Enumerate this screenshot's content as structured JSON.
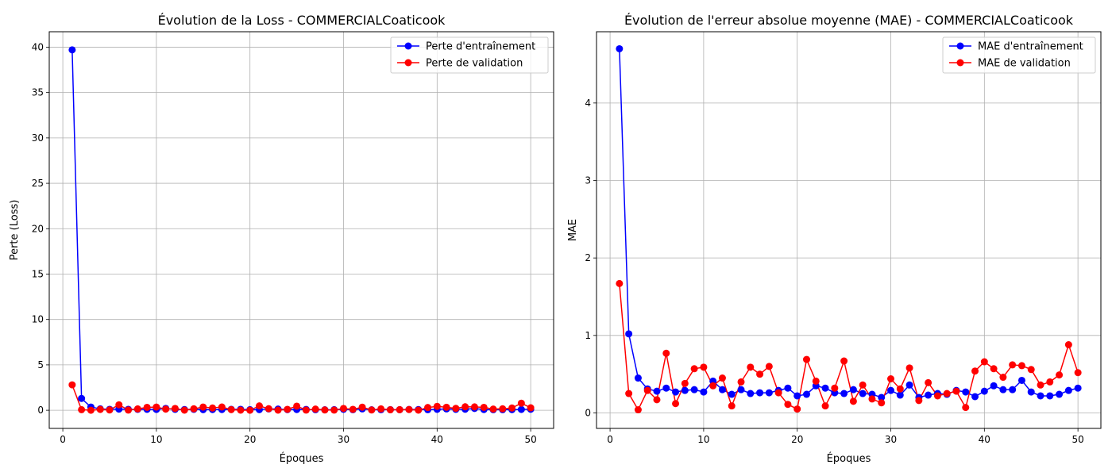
{
  "chart_data": [
    {
      "type": "line",
      "title": "Évolution de la Loss - COMMERCIALCoaticook",
      "xlabel": "Époques",
      "ylabel": "Perte (Loss)",
      "xlim": [
        -1.45,
        52.45
      ],
      "ylim": [
        -2.0,
        41.7
      ],
      "xticks": [
        0,
        10,
        20,
        30,
        40,
        50
      ],
      "yticks": [
        0,
        5,
        10,
        15,
        20,
        25,
        30,
        35,
        40
      ],
      "grid": true,
      "legend": "top-right",
      "x": [
        1,
        2,
        3,
        4,
        5,
        6,
        7,
        8,
        9,
        10,
        11,
        12,
        13,
        14,
        15,
        16,
        17,
        18,
        19,
        20,
        21,
        22,
        23,
        24,
        25,
        26,
        27,
        28,
        29,
        30,
        31,
        32,
        33,
        34,
        35,
        36,
        37,
        38,
        39,
        40,
        41,
        42,
        43,
        44,
        45,
        46,
        47,
        48,
        49,
        50
      ],
      "series": [
        {
          "name": "Perte d'entraînement",
          "color": "#0000ff",
          "values": [
            39.7,
            1.3,
            0.35,
            0.15,
            0.1,
            0.12,
            0.1,
            0.1,
            0.1,
            0.09,
            0.2,
            0.1,
            0.08,
            0.1,
            0.07,
            0.08,
            0.08,
            0.1,
            0.1,
            0.06,
            0.07,
            0.15,
            0.13,
            0.07,
            0.08,
            0.09,
            0.06,
            0.05,
            0.06,
            0.1,
            0.06,
            0.15,
            0.05,
            0.06,
            0.07,
            0.06,
            0.09,
            0.08,
            0.06,
            0.1,
            0.15,
            0.1,
            0.11,
            0.2,
            0.08,
            0.06,
            0.06,
            0.07,
            0.09,
            0.11
          ]
        },
        {
          "name": "Perte de validation",
          "color": "#ff0000",
          "values": [
            2.8,
            0.06,
            0.0,
            0.09,
            0.03,
            0.6,
            0.02,
            0.15,
            0.32,
            0.35,
            0.12,
            0.2,
            0.01,
            0.16,
            0.35,
            0.25,
            0.36,
            0.07,
            0.01,
            0.0,
            0.48,
            0.17,
            0.01,
            0.1,
            0.45,
            0.02,
            0.13,
            0.03,
            0.02,
            0.2,
            0.1,
            0.34,
            0.03,
            0.15,
            0.05,
            0.06,
            0.08,
            0.01,
            0.3,
            0.43,
            0.33,
            0.21,
            0.38,
            0.37,
            0.32,
            0.13,
            0.16,
            0.25,
            0.78,
            0.27
          ]
        }
      ]
    },
    {
      "type": "line",
      "title": "Évolution de l'erreur absolue moyenne (MAE) - COMMERCIALCoaticook",
      "xlabel": "Époques",
      "ylabel": "MAE",
      "xlim": [
        -1.45,
        52.45
      ],
      "ylim": [
        -0.2,
        4.92
      ],
      "xticks": [
        0,
        10,
        20,
        30,
        40,
        50
      ],
      "yticks": [
        0,
        1,
        2,
        3,
        4
      ],
      "grid": true,
      "legend": "top-right",
      "x": [
        1,
        2,
        3,
        4,
        5,
        6,
        7,
        8,
        9,
        10,
        11,
        12,
        13,
        14,
        15,
        16,
        17,
        18,
        19,
        20,
        21,
        22,
        23,
        24,
        25,
        26,
        27,
        28,
        29,
        30,
        31,
        32,
        33,
        34,
        35,
        36,
        37,
        38,
        39,
        40,
        41,
        42,
        43,
        44,
        45,
        46,
        47,
        48,
        49,
        50
      ],
      "series": [
        {
          "name": "MAE d'entraînement",
          "color": "#0000ff",
          "values": [
            4.7,
            1.02,
            0.45,
            0.31,
            0.28,
            0.32,
            0.27,
            0.29,
            0.3,
            0.27,
            0.41,
            0.3,
            0.24,
            0.3,
            0.25,
            0.26,
            0.26,
            0.29,
            0.32,
            0.22,
            0.24,
            0.35,
            0.32,
            0.26,
            0.25,
            0.3,
            0.25,
            0.24,
            0.2,
            0.29,
            0.23,
            0.36,
            0.2,
            0.23,
            0.25,
            0.24,
            0.29,
            0.27,
            0.21,
            0.28,
            0.35,
            0.3,
            0.3,
            0.42,
            0.27,
            0.22,
            0.22,
            0.24,
            0.29,
            0.32
          ]
        },
        {
          "name": "MAE de validation",
          "color": "#ff0000",
          "values": [
            1.67,
            0.25,
            0.04,
            0.29,
            0.17,
            0.77,
            0.12,
            0.38,
            0.57,
            0.59,
            0.35,
            0.45,
            0.09,
            0.4,
            0.59,
            0.5,
            0.6,
            0.26,
            0.11,
            0.05,
            0.69,
            0.41,
            0.09,
            0.32,
            0.67,
            0.15,
            0.36,
            0.18,
            0.13,
            0.44,
            0.31,
            0.58,
            0.16,
            0.39,
            0.22,
            0.25,
            0.28,
            0.07,
            0.54,
            0.66,
            0.57,
            0.46,
            0.62,
            0.61,
            0.56,
            0.36,
            0.4,
            0.49,
            0.88,
            0.52
          ]
        }
      ]
    }
  ]
}
